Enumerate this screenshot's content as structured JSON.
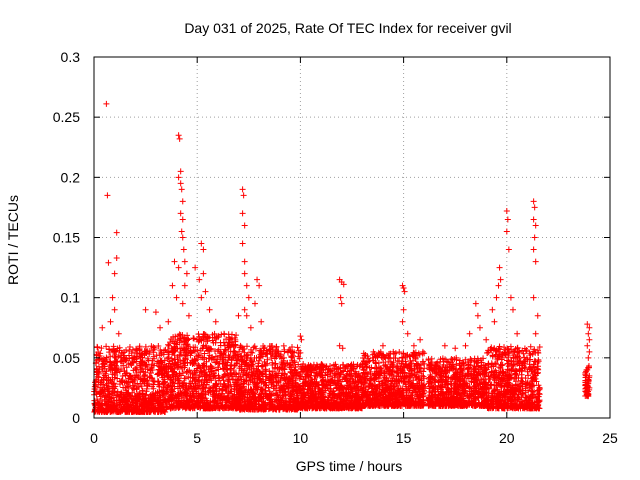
{
  "chart_data": {
    "type": "scatter",
    "title": "Day 031 of 2025, Rate Of TEC Index for receiver gvil",
    "xlabel": "GPS time / hours",
    "ylabel": "ROTI / TECUs",
    "xlim": [
      0,
      25
    ],
    "ylim": [
      0,
      0.3
    ],
    "xticks": [
      0,
      5,
      10,
      15,
      20,
      25
    ],
    "xtick_labels": [
      "0",
      "5",
      "10",
      "15",
      "20",
      "25"
    ],
    "yticks": [
      0,
      0.05,
      0.1,
      0.15,
      0.2,
      0.25,
      0.3
    ],
    "ytick_labels": [
      "0",
      "0.05",
      "0.1",
      "0.15",
      "0.2",
      "0.25",
      "0.3"
    ],
    "grid": true,
    "marker": "+",
    "marker_color": "#ff0000",
    "series": [
      {
        "name": "ROTI",
        "color": "#ff0000",
        "points": [
          [
            0.6,
            0.261
          ],
          [
            0.65,
            0.185
          ],
          [
            0.7,
            0.129
          ],
          [
            1.1,
            0.154
          ],
          [
            1.1,
            0.133
          ],
          [
            1.0,
            0.12
          ],
          [
            0.9,
            0.1
          ],
          [
            1.0,
            0.09
          ],
          [
            0.4,
            0.075
          ],
          [
            0.8,
            0.08
          ],
          [
            1.2,
            0.07
          ],
          [
            2.5,
            0.09
          ],
          [
            3.0,
            0.088
          ],
          [
            3.2,
            0.075
          ],
          [
            3.6,
            0.08
          ],
          [
            3.8,
            0.11
          ],
          [
            3.9,
            0.13
          ],
          [
            4.0,
            0.1
          ],
          [
            4.1,
            0.235
          ],
          [
            4.15,
            0.232
          ],
          [
            4.2,
            0.205
          ],
          [
            4.1,
            0.2
          ],
          [
            4.2,
            0.195
          ],
          [
            4.25,
            0.19
          ],
          [
            4.3,
            0.18
          ],
          [
            4.2,
            0.17
          ],
          [
            4.3,
            0.165
          ],
          [
            4.25,
            0.155
          ],
          [
            4.3,
            0.15
          ],
          [
            4.35,
            0.14
          ],
          [
            4.4,
            0.13
          ],
          [
            4.1,
            0.125
          ],
          [
            4.5,
            0.12
          ],
          [
            4.4,
            0.11
          ],
          [
            4.3,
            0.095
          ],
          [
            4.6,
            0.085
          ],
          [
            4.9,
            0.125
          ],
          [
            5.1,
            0.115
          ],
          [
            5.2,
            0.1
          ],
          [
            5.2,
            0.145
          ],
          [
            5.3,
            0.14
          ],
          [
            5.3,
            0.12
          ],
          [
            5.4,
            0.105
          ],
          [
            5.6,
            0.09
          ],
          [
            5.9,
            0.08
          ],
          [
            6.3,
            0.07
          ],
          [
            6.6,
            0.065
          ],
          [
            7.0,
            0.085
          ],
          [
            7.2,
            0.19
          ],
          [
            7.25,
            0.185
          ],
          [
            7.2,
            0.17
          ],
          [
            7.3,
            0.16
          ],
          [
            7.2,
            0.145
          ],
          [
            7.3,
            0.13
          ],
          [
            7.3,
            0.12
          ],
          [
            7.4,
            0.11
          ],
          [
            7.5,
            0.1
          ],
          [
            7.3,
            0.09
          ],
          [
            7.4,
            0.085
          ],
          [
            7.6,
            0.075
          ],
          [
            7.9,
            0.115
          ],
          [
            8.0,
            0.11
          ],
          [
            7.8,
            0.095
          ],
          [
            8.1,
            0.08
          ],
          [
            8.5,
            0.055
          ],
          [
            9.2,
            0.05
          ],
          [
            9.6,
            0.048
          ],
          [
            10.0,
            0.068
          ],
          [
            10.05,
            0.065
          ],
          [
            11.9,
            0.115
          ],
          [
            12.0,
            0.113
          ],
          [
            12.1,
            0.111
          ],
          [
            11.95,
            0.1
          ],
          [
            12.0,
            0.095
          ],
          [
            11.9,
            0.06
          ],
          [
            12.05,
            0.058
          ],
          [
            13.0,
            0.045
          ],
          [
            13.5,
            0.05
          ],
          [
            14.0,
            0.06
          ],
          [
            14.5,
            0.055
          ],
          [
            14.95,
            0.11
          ],
          [
            15.0,
            0.108
          ],
          [
            15.05,
            0.105
          ],
          [
            15.0,
            0.09
          ],
          [
            14.95,
            0.08
          ],
          [
            15.2,
            0.07
          ],
          [
            15.5,
            0.06
          ],
          [
            15.8,
            0.065
          ],
          [
            16.0,
            0.045
          ],
          [
            17.0,
            0.06
          ],
          [
            17.5,
            0.058
          ],
          [
            18.0,
            0.06
          ],
          [
            18.2,
            0.07
          ],
          [
            18.5,
            0.095
          ],
          [
            18.6,
            0.085
          ],
          [
            18.7,
            0.075
          ],
          [
            19.0,
            0.065
          ],
          [
            19.3,
            0.09
          ],
          [
            19.5,
            0.1
          ],
          [
            19.6,
            0.11
          ],
          [
            19.65,
            0.125
          ],
          [
            19.7,
            0.115
          ],
          [
            19.4,
            0.08
          ],
          [
            20.0,
            0.172
          ],
          [
            20.05,
            0.165
          ],
          [
            20.0,
            0.155
          ],
          [
            20.1,
            0.14
          ],
          [
            20.2,
            0.1
          ],
          [
            20.3,
            0.09
          ],
          [
            20.5,
            0.07
          ],
          [
            21.3,
            0.18
          ],
          [
            21.35,
            0.175
          ],
          [
            21.3,
            0.165
          ],
          [
            21.4,
            0.16
          ],
          [
            21.35,
            0.15
          ],
          [
            21.3,
            0.14
          ],
          [
            21.4,
            0.13
          ],
          [
            21.3,
            0.1
          ],
          [
            21.5,
            0.085
          ],
          [
            21.4,
            0.07
          ],
          [
            23.9,
            0.078
          ],
          [
            24.0,
            0.075
          ],
          [
            23.95,
            0.07
          ],
          [
            24.0,
            0.065
          ],
          [
            23.9,
            0.06
          ],
          [
            24.0,
            0.055
          ],
          [
            23.95,
            0.05
          ],
          [
            23.9,
            0.04
          ],
          [
            24.0,
            0.035
          ],
          [
            23.95,
            0.03
          ],
          [
            24.0,
            0.025
          ],
          [
            23.9,
            0.02
          ]
        ]
      }
    ],
    "dense_bands": [
      {
        "x": [
          0.0,
          3.5
        ],
        "y": [
          0.005,
          0.06
        ]
      },
      {
        "x": [
          3.5,
          7.0
        ],
        "y": [
          0.008,
          0.07
        ]
      },
      {
        "x": [
          7.0,
          10.0
        ],
        "y": [
          0.007,
          0.06
        ]
      },
      {
        "x": [
          10.0,
          13.0
        ],
        "y": [
          0.008,
          0.045
        ]
      },
      {
        "x": [
          13.0,
          16.0
        ],
        "y": [
          0.01,
          0.055
        ]
      },
      {
        "x": [
          16.2,
          19.0
        ],
        "y": [
          0.01,
          0.05
        ]
      },
      {
        "x": [
          19.0,
          21.6
        ],
        "y": [
          0.008,
          0.06
        ]
      },
      {
        "x": [
          23.8,
          24.0
        ],
        "y": [
          0.018,
          0.045
        ]
      }
    ]
  }
}
